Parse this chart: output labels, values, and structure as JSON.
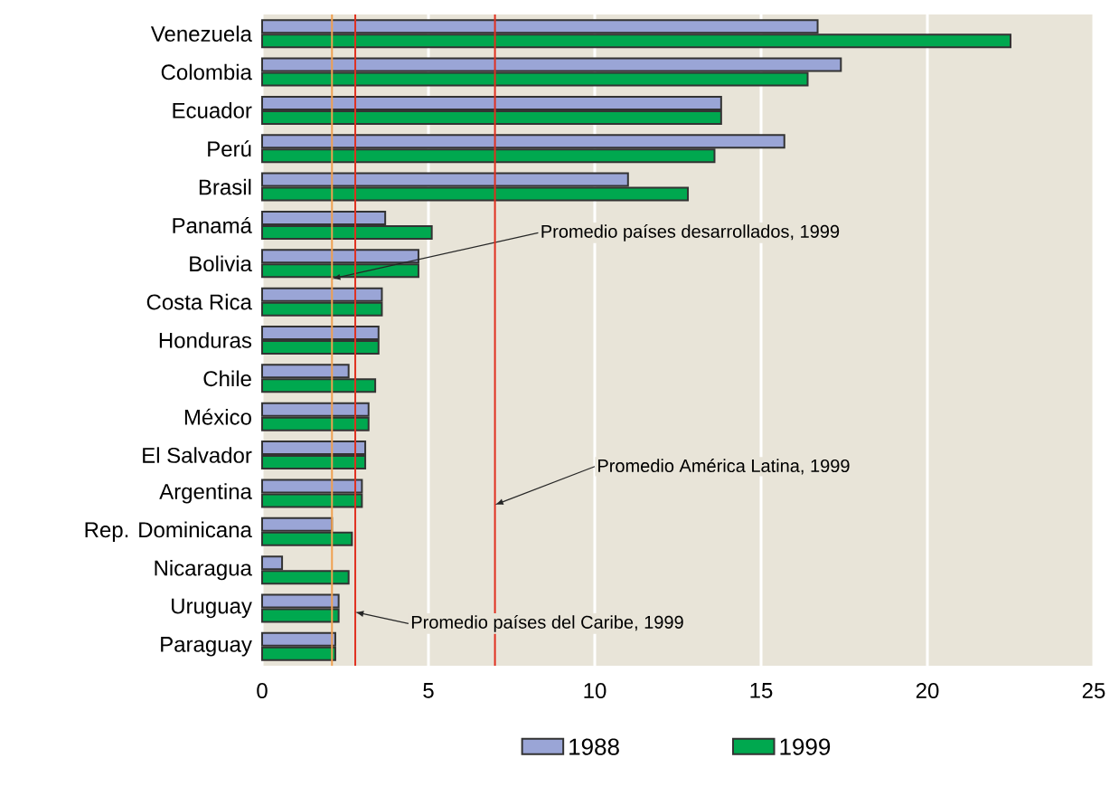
{
  "chart_data": {
    "type": "bar",
    "orientation": "horizontal",
    "categories": [
      "Venezuela",
      "Colombia",
      "Ecuador",
      "Perú",
      "Brasil",
      "Panamá",
      "Bolivia",
      "Costa Rica",
      "Honduras",
      "Chile",
      "México",
      "El Salvador",
      "Argentina",
      "Rep. Dominicana",
      "Nicaragua",
      "Uruguay",
      "Paraguay"
    ],
    "series": [
      {
        "name": "1988",
        "color": "#9aa5d6",
        "values": [
          16.7,
          17.4,
          13.8,
          15.7,
          11.0,
          3.7,
          4.7,
          3.6,
          3.5,
          2.6,
          3.2,
          3.1,
          3.0,
          2.1,
          0.6,
          2.3,
          2.2
        ]
      },
      {
        "name": "1999",
        "color": "#00a84f",
        "values": [
          22.5,
          16.4,
          13.8,
          13.6,
          12.8,
          5.1,
          4.7,
          3.6,
          3.5,
          3.4,
          3.2,
          3.1,
          3.0,
          2.7,
          2.6,
          2.3,
          2.2
        ]
      }
    ],
    "xlim": [
      0,
      25
    ],
    "xticks": [
      0,
      5,
      10,
      15,
      20,
      25
    ],
    "grid": "x",
    "legend": "bottom",
    "ref_lines": [
      {
        "axis": "x",
        "value": 2.1,
        "label": "Promedio países desarrollados, 1999",
        "color": "#f0a050"
      },
      {
        "axis": "x",
        "value": 7.0,
        "label": "Promedio América Latina, 1999",
        "color": "#e03020"
      },
      {
        "axis": "x",
        "value": 2.8,
        "label": "Promedio países del Caribe, 1999",
        "color": "#e03020"
      }
    ]
  }
}
